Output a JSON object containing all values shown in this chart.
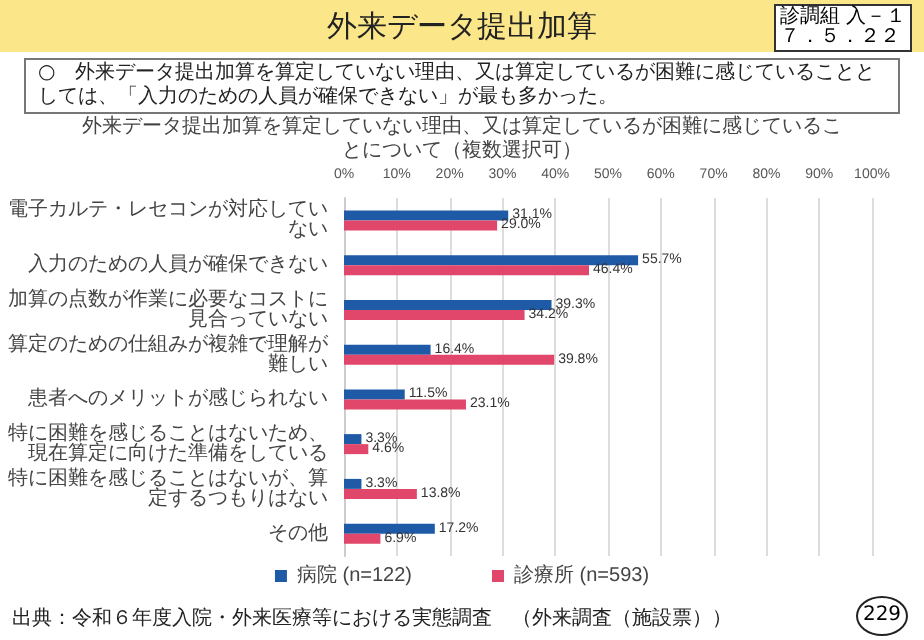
{
  "chart_data": {
    "type": "bar",
    "orientation": "horizontal",
    "title": "外来データ提出加算",
    "subtitle": "外来データ提出加算を算定していない理由、又は算定しているが困難に感じていることについて（複数選択可）",
    "annotations": [
      "○　外来データ提出加算を算定していない理由、又は算定しているが困難に感じていることとしては、「入力のための人員が確保できない」が最も多かった。",
      "出典：令和６年度入院・外来医療等における実態調査　（外来調査（施設票））",
      "診調組 入－１",
      "７．５．２２",
      "229"
    ],
    "categories": [
      "電子カルテ・レセコンが対応していない",
      "入力のための人員が確保できない",
      "加算の点数が作業に必要なコストに見合っていない",
      "算定のための仕組みが複雑で理解が難しい",
      "患者へのメリットが感じられない",
      "特に困難を感じることはないため、現在算定に向けた準備をしている",
      "特に困難を感じることはないが、算定するつもりはない",
      "その他"
    ],
    "series": [
      {
        "name": "病院 (n=122)",
        "color": "#1f5aa6",
        "values": [
          31.1,
          55.7,
          39.3,
          16.4,
          11.5,
          3.3,
          3.3,
          17.2
        ],
        "value_labels": [
          "31.1%",
          "55.7%",
          "39.3%",
          "16.4%",
          "11.5%",
          "3.3%",
          "3.3%",
          "17.2%"
        ]
      },
      {
        "name": "診療所 (n=593)",
        "color": "#e0476b",
        "values": [
          29.0,
          46.4,
          34.2,
          39.8,
          23.1,
          4.6,
          13.8,
          6.9
        ],
        "value_labels": [
          "29.0%",
          "46.4%",
          "34.2%",
          "39.8%",
          "23.1%",
          "4.6%",
          "13.8%",
          "6.9%"
        ]
      }
    ],
    "xlim": [
      0,
      100
    ],
    "xticks": [
      {
        "value": 0,
        "label": "0%"
      },
      {
        "value": 10,
        "label": "10%"
      },
      {
        "value": 20,
        "label": "20%"
      },
      {
        "value": 30,
        "label": "30%"
      },
      {
        "value": 40,
        "label": "40%"
      },
      {
        "value": 50,
        "label": "50%"
      },
      {
        "value": 60,
        "label": "60%"
      },
      {
        "value": 70,
        "label": "70%"
      },
      {
        "value": 80,
        "label": "80%"
      },
      {
        "value": 90,
        "label": "90%"
      },
      {
        "value": 100,
        "label": "100%"
      }
    ],
    "grid": "x",
    "legend": "bottom"
  }
}
